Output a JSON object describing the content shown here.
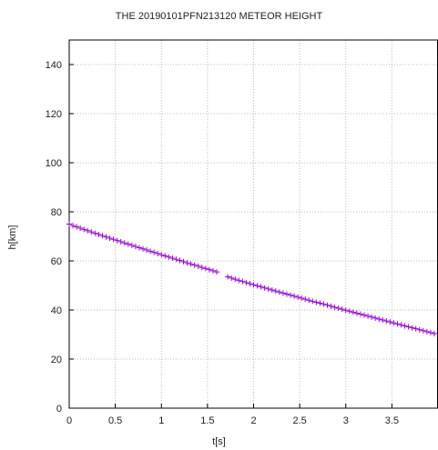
{
  "chart_data": {
    "type": "scatter",
    "title": "THE 20190101PFN213120 METEOR HEIGHT",
    "xlabel": "t[s]",
    "ylabel": "h[km]",
    "xlim": [
      0,
      4
    ],
    "ylim": [
      0,
      150
    ],
    "x_ticks": [
      0,
      0.5,
      1,
      1.5,
      2,
      2.5,
      3,
      3.5
    ],
    "y_ticks": [
      0,
      20,
      40,
      60,
      80,
      100,
      120,
      140
    ],
    "grid": true,
    "series": [
      {
        "color": "#9400d3",
        "marker": "+",
        "segments": [
          {
            "t_start": 0.0,
            "t_end": 1.6,
            "h_start": 75.0,
            "h_end": 55.5,
            "step": 0.04
          },
          {
            "t_start": 1.72,
            "t_end": 4.0,
            "h_start": 53.5,
            "h_end": 30.0,
            "step": 0.04
          }
        ]
      }
    ]
  }
}
